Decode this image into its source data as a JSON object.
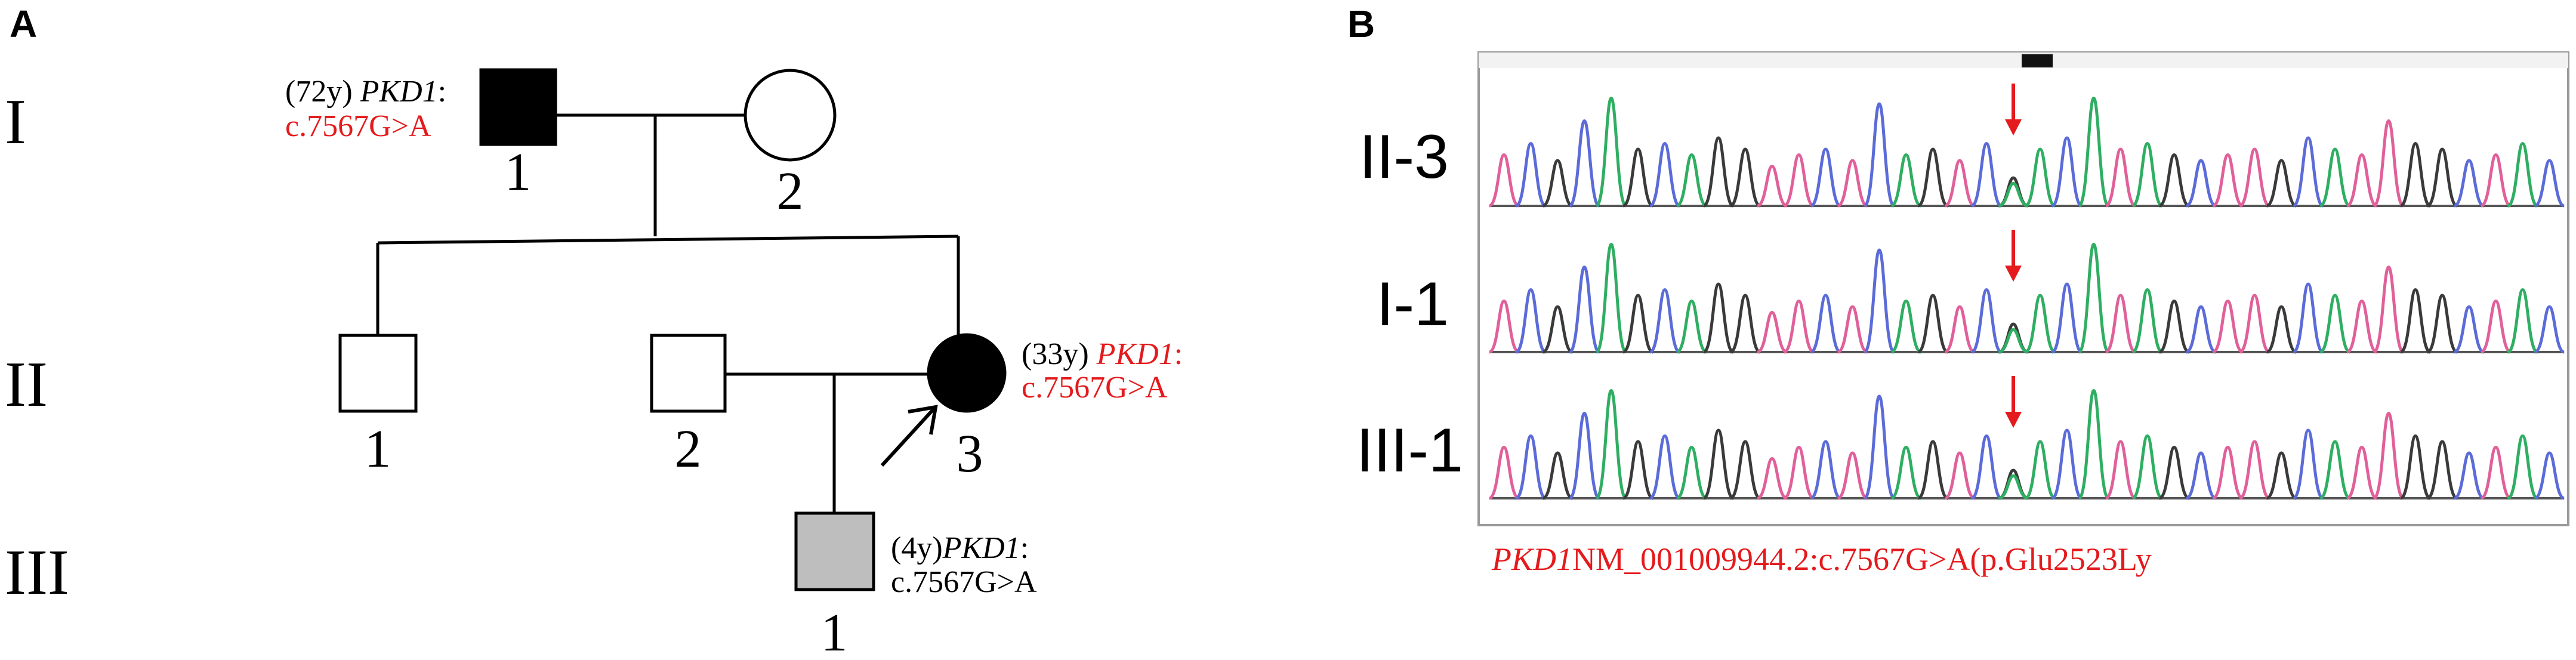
{
  "colors": {
    "line": "#000000",
    "affected": "#000000",
    "carrier": "#bebebe",
    "unaffected": "#ffffff",
    "variant_text": "#e41a1c",
    "trace_blue": "#5b6bd8",
    "trace_green": "#2fae62",
    "trace_black": "#3a3a3a",
    "trace_pink": "#e0609a",
    "arrow_red": "#e41a1c"
  },
  "panel_a": {
    "label": "A",
    "generations": [
      "I",
      "II",
      "III"
    ],
    "individuals": {
      "I1": {
        "number": "1",
        "age": "(72y)",
        "gene": "PKD1",
        "colon": ":",
        "variant": "c.7567G>A",
        "status": "affected"
      },
      "I2": {
        "number": "2",
        "status": "unaffected"
      },
      "II1": {
        "number": "1",
        "status": "unaffected"
      },
      "II2": {
        "number": "2",
        "status": "unaffected"
      },
      "II3": {
        "number": "3",
        "age": "(33y)",
        "gene": "PKD1",
        "colon": ":",
        "variant": "c.7567G>A",
        "status": "affected",
        "proband": true
      },
      "III1": {
        "number": "1",
        "age": "(4y)",
        "gene": "PKD1",
        "colon": ":",
        "variant": "c.7567G>A",
        "status": "carrier"
      }
    }
  },
  "panel_b": {
    "label": "B",
    "tracks": [
      {
        "label": "II-3"
      },
      {
        "label": "I-1"
      },
      {
        "label": "III-1"
      }
    ],
    "caption_gene": "PKD1",
    "caption_variant": "NM_001009944.2:c.7567G>A(p.Glu2523Ly"
  }
}
